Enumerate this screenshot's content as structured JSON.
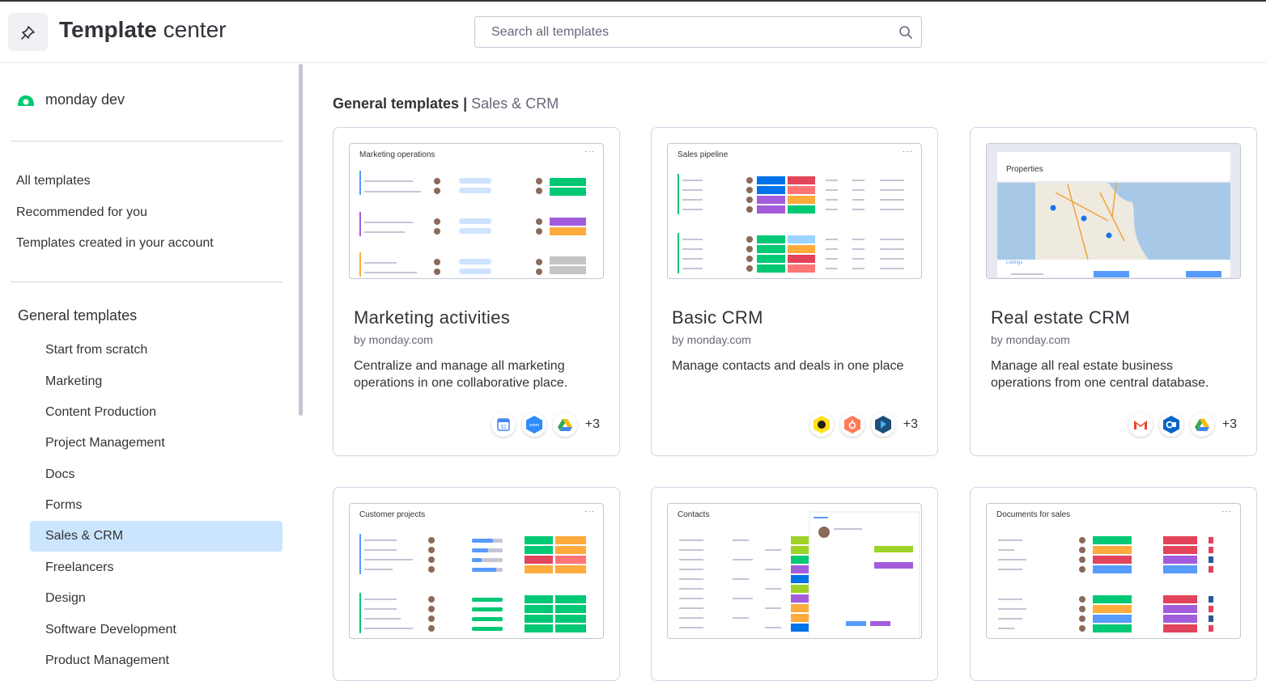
{
  "header": {
    "title_bold": "Template",
    "title_light": " center",
    "search_placeholder": "Search all templates"
  },
  "sidebar": {
    "workspace": "monday dev",
    "nav": [
      {
        "label": "All templates"
      },
      {
        "label": "Recommended for you"
      },
      {
        "label": "Templates created in your account"
      }
    ],
    "section_title": "General templates",
    "categories": [
      {
        "label": "Start from scratch"
      },
      {
        "label": "Marketing"
      },
      {
        "label": "Content Production"
      },
      {
        "label": "Project Management"
      },
      {
        "label": "Docs"
      },
      {
        "label": "Forms"
      },
      {
        "label": "Sales & CRM",
        "active": true
      },
      {
        "label": "Freelancers"
      },
      {
        "label": "Design"
      },
      {
        "label": "Software Development"
      },
      {
        "label": "Product Management"
      }
    ]
  },
  "main": {
    "breadcrumb_bold": "General templates",
    "breadcrumb_sep": "|",
    "breadcrumb_light": "Sales & CRM",
    "cards": [
      {
        "preview_title": "Marketing operations",
        "name": "Marketing activities",
        "by": "by monday.com",
        "description": "Centralize and manage all marketing operations in one collaborative place.",
        "integrations": [
          "google-calendar-icon",
          "zoom-icon",
          "google-drive-icon"
        ],
        "zoom_label": "zoom",
        "more": "+3"
      },
      {
        "preview_title": "Sales pipeline",
        "name": "Basic CRM",
        "by": "by monday.com",
        "description": "Manage contacts and deals in one place",
        "integrations": [
          "mailchimp-icon",
          "hubspot-icon",
          "dynamics-icon"
        ],
        "more": "+3"
      },
      {
        "preview_title": "Properties",
        "preview_subtitle": "Listings",
        "name": "Real estate CRM",
        "by": "by monday.com",
        "description": "Manage all real estate business operations from one central database.",
        "integrations": [
          "gmail-icon",
          "outlook-icon",
          "google-drive-icon"
        ],
        "more": "+3"
      },
      {
        "preview_title": "Customer projects"
      },
      {
        "preview_title": "Contacts"
      },
      {
        "preview_title": "Documents for sales"
      }
    ]
  },
  "colors": {
    "green": "#00c875",
    "orange": "#fdab3d",
    "red": "#e2445c",
    "blue": "#579bfc",
    "purple": "#a25ddc",
    "active_bg": "#cce5ff",
    "dark_blue": "#0073ea"
  }
}
